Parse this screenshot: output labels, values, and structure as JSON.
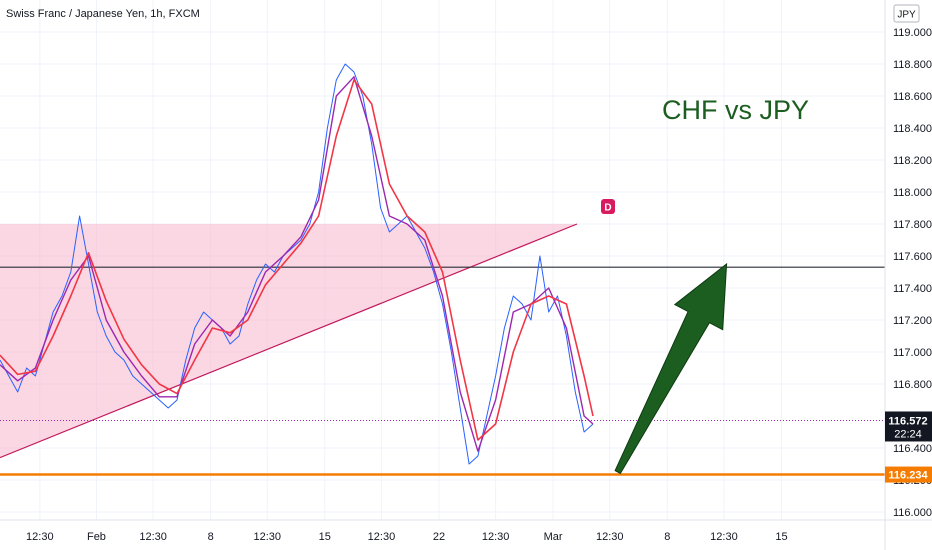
{
  "header": {
    "symbol_title": "Swiss Franc / Japanese Yen, 1h, FXCM"
  },
  "currency_badge": "JPY",
  "annotation": {
    "text": "CHF vs JPY",
    "color": "#1b5e20"
  },
  "event_marker": {
    "label": "D",
    "color": "#d81b60"
  },
  "colors": {
    "price": "#2962ff",
    "ma_fast": "#9c27b0",
    "ma_slow": "#f23645",
    "triangle_fill": "#f8bbd0",
    "triangle_line": "#c2185b",
    "support": "#f57c00",
    "resistance": "#2a2e39",
    "arrow": "#1b5e20"
  },
  "chart_data": {
    "type": "line",
    "title": "Swiss Franc / Japanese Yen, 1h, FXCM",
    "ylim": [
      115.95,
      119.2
    ],
    "y_ticks": [
      "119.000",
      "118.800",
      "118.600",
      "118.400",
      "118.200",
      "118.000",
      "117.800",
      "117.600",
      "117.400",
      "117.200",
      "117.000",
      "116.800",
      "116.400",
      "116.200",
      "116.000"
    ],
    "y_tick_values": [
      119.0,
      118.8,
      118.6,
      118.4,
      118.2,
      118.0,
      117.8,
      117.6,
      117.4,
      117.2,
      117.0,
      116.8,
      116.4,
      116.2,
      116.0
    ],
    "x_ticks": [
      "12:30",
      "Feb",
      "12:30",
      "8",
      "12:30",
      "15",
      "12:30",
      "22",
      "12:30",
      "Mar",
      "12:30",
      "8",
      "12:30",
      "15"
    ],
    "x_range": [
      0,
      100
    ],
    "x_tick_positions": [
      4.5,
      10.9,
      17.3,
      23.8,
      30.2,
      36.7,
      43.1,
      49.6,
      56.0,
      62.5,
      68.9,
      75.4,
      81.8,
      88.3
    ],
    "current_price": {
      "value": "116.572",
      "countdown": "22:24",
      "y": 116.572
    },
    "support_level": {
      "value": "116.234",
      "y": 116.234
    },
    "resistance_level": {
      "y": 117.53
    },
    "series": [
      {
        "name": "price",
        "x": [
          0,
          1,
          2,
          3,
          4,
          5,
          6,
          7,
          8,
          9,
          10,
          11,
          12,
          13,
          14,
          15,
          16,
          17,
          18,
          19,
          20,
          21,
          22,
          23,
          24,
          25,
          26,
          27,
          28,
          29,
          30,
          31,
          32,
          33,
          34,
          35,
          36,
          37,
          38,
          39,
          40,
          41,
          42,
          43,
          44,
          45,
          46,
          47,
          48,
          49,
          50,
          51,
          52,
          53,
          54,
          55,
          56,
          57,
          58,
          59,
          60,
          61,
          62,
          63,
          64,
          65,
          66,
          67
        ],
        "y": [
          116.95,
          116.85,
          116.75,
          116.9,
          116.85,
          117.05,
          117.25,
          117.35,
          117.5,
          117.85,
          117.55,
          117.25,
          117.1,
          117.0,
          116.95,
          116.85,
          116.8,
          116.75,
          116.7,
          116.65,
          116.7,
          116.95,
          117.15,
          117.25,
          117.2,
          117.15,
          117.05,
          117.1,
          117.3,
          117.45,
          117.55,
          117.5,
          117.6,
          117.65,
          117.7,
          117.8,
          118.0,
          118.4,
          118.7,
          118.8,
          118.75,
          118.6,
          118.3,
          117.9,
          117.75,
          117.8,
          117.85,
          117.75,
          117.65,
          117.5,
          117.3,
          117.0,
          116.65,
          116.3,
          116.35,
          116.6,
          116.85,
          117.15,
          117.35,
          117.3,
          117.2,
          117.6,
          117.25,
          117.35,
          117.1,
          116.75,
          116.5,
          116.55
        ]
      },
      {
        "name": "ma_fast",
        "x": [
          0,
          2,
          4,
          6,
          8,
          10,
          12,
          14,
          16,
          18,
          20,
          22,
          24,
          26,
          28,
          30,
          32,
          34,
          36,
          38,
          40,
          42,
          44,
          46,
          48,
          50,
          52,
          54,
          56,
          58,
          60,
          62,
          64,
          66,
          67
        ],
        "y": [
          116.92,
          116.82,
          116.9,
          117.2,
          117.45,
          117.6,
          117.2,
          117.0,
          116.85,
          116.72,
          116.72,
          117.05,
          117.2,
          117.1,
          117.25,
          117.5,
          117.6,
          117.72,
          117.95,
          118.6,
          118.72,
          118.35,
          117.85,
          117.8,
          117.7,
          117.35,
          116.75,
          116.38,
          116.7,
          117.25,
          117.3,
          117.4,
          117.15,
          116.6,
          116.55
        ]
      },
      {
        "name": "ma_slow",
        "x": [
          0,
          2,
          4,
          6,
          8,
          10,
          12,
          14,
          16,
          18,
          20,
          22,
          24,
          26,
          28,
          30,
          32,
          34,
          36,
          38,
          40,
          42,
          44,
          46,
          48,
          50,
          52,
          54,
          56,
          58,
          60,
          62,
          64,
          66,
          67
        ],
        "y": [
          116.98,
          116.86,
          116.88,
          117.1,
          117.35,
          117.62,
          117.32,
          117.08,
          116.92,
          116.8,
          116.74,
          116.95,
          117.15,
          117.12,
          117.2,
          117.42,
          117.55,
          117.68,
          117.85,
          118.35,
          118.7,
          118.55,
          118.05,
          117.85,
          117.75,
          117.5,
          116.95,
          116.45,
          116.55,
          117.0,
          117.3,
          117.35,
          117.3,
          116.85,
          116.6
        ]
      }
    ],
    "triangle": {
      "apex": {
        "x": 65.2,
        "y": 117.8
      },
      "left_top_y": 117.8,
      "left_bottom_y": 116.34
    },
    "arrow": {
      "from": {
        "x": 69.8,
        "y": 116.25
      },
      "to": {
        "x": 82.1,
        "y": 117.55
      }
    }
  }
}
